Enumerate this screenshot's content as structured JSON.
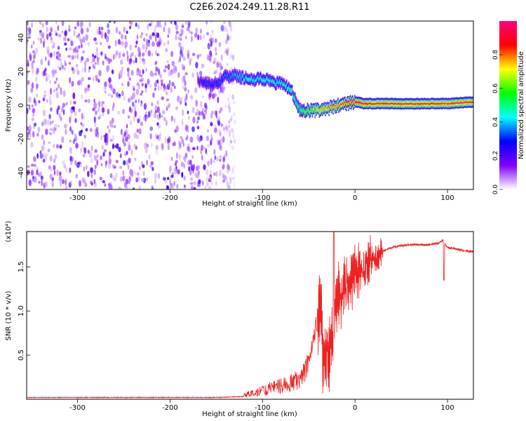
{
  "figure": {
    "title": "C2E6.2024.249.11.28.R11"
  },
  "chart_data": [
    {
      "type": "heatmap",
      "xlabel": "Height of straight line (km)",
      "ylabel": "Frequency (Hz)",
      "xlim": [
        -355,
        128
      ],
      "ylim": [
        -50,
        50
      ],
      "xticks": [
        -300,
        -200,
        -100,
        0,
        100
      ],
      "yticks": [
        -40,
        -20,
        0,
        20,
        40
      ],
      "colorbar": {
        "label": "Normalized spectral amplitude",
        "range": [
          0.0,
          1.0
        ],
        "ticks": [
          "0.0",
          "0.2",
          "0.4",
          "0.6",
          "0.8"
        ],
        "tick_values": [
          0.0,
          0.2,
          0.4,
          0.6,
          0.8
        ],
        "colormap": [
          "#ffffff",
          "#7f00ff",
          "#0000ff",
          "#00ffff",
          "#00ff00",
          "#ffff00",
          "#ff0000",
          "#ff0080"
        ]
      },
      "noise_region": {
        "x_range": [
          -355,
          -130
        ],
        "amplitude": [
          0.05,
          0.3
        ]
      },
      "ridge": {
        "x": [
          -170,
          -160,
          -150,
          -140,
          -130,
          -120,
          -110,
          -100,
          -90,
          -80,
          -70,
          -60,
          -50,
          -40,
          -30,
          -20,
          -10,
          0,
          10,
          20,
          40,
          60,
          80,
          100,
          128
        ],
        "y": [
          15,
          12,
          13,
          17,
          18,
          16,
          15,
          16,
          14,
          13,
          10,
          -3,
          -3,
          -3,
          -2,
          0,
          1,
          2,
          1,
          1,
          1,
          1,
          1,
          1,
          2
        ],
        "amplitude": [
          0.2,
          0.3,
          0.3,
          0.35,
          0.4,
          0.45,
          0.45,
          0.45,
          0.45,
          0.45,
          0.5,
          0.55,
          0.65,
          0.75,
          0.8,
          0.85,
          0.88,
          0.9,
          0.88,
          0.85,
          0.85,
          0.85,
          0.85,
          0.85,
          0.85
        ]
      }
    },
    {
      "type": "line",
      "xlabel": "Height of straight line (km)",
      "ylabel": "SNR (10 * v/v)",
      "scale_note": "(x10⁴)",
      "xlim": [
        -355,
        128
      ],
      "ylim": [
        0,
        1.9
      ],
      "xticks": [
        -300,
        -200,
        -100,
        0,
        100
      ],
      "yticks": [
        0.5,
        1.0,
        1.5
      ],
      "ytick_labels": [
        "0.5",
        "1.0",
        "1.5"
      ],
      "color": "#ee2222",
      "series": [
        {
          "x": [
            -355,
            -300,
            -250,
            -200,
            -150,
            -120,
            -110,
            -100,
            -90,
            -80,
            -70,
            -60,
            -55,
            -50,
            -45,
            -40,
            -37,
            -35,
            -30,
            -25,
            -20,
            -15,
            -10,
            -5,
            0,
            10,
            20,
            30,
            40,
            50,
            60,
            70,
            80,
            90,
            95,
            100,
            110,
            120,
            128
          ],
          "y": [
            0.02,
            0.02,
            0.02,
            0.02,
            0.02,
            0.03,
            0.05,
            0.07,
            0.1,
            0.12,
            0.14,
            0.18,
            0.25,
            0.35,
            0.6,
            0.9,
            1.2,
            0.5,
            0.45,
            0.7,
            1.1,
            1.2,
            1.3,
            1.4,
            1.4,
            1.5,
            1.6,
            1.68,
            1.72,
            1.74,
            1.75,
            1.75,
            1.75,
            1.77,
            1.8,
            1.72,
            1.7,
            1.68,
            1.67
          ]
        }
      ],
      "annotations": [
        {
          "x": -23,
          "y": 1.9,
          "note": "spike"
        },
        {
          "x": 96,
          "y": 1.35,
          "note": "dip"
        }
      ]
    }
  ]
}
